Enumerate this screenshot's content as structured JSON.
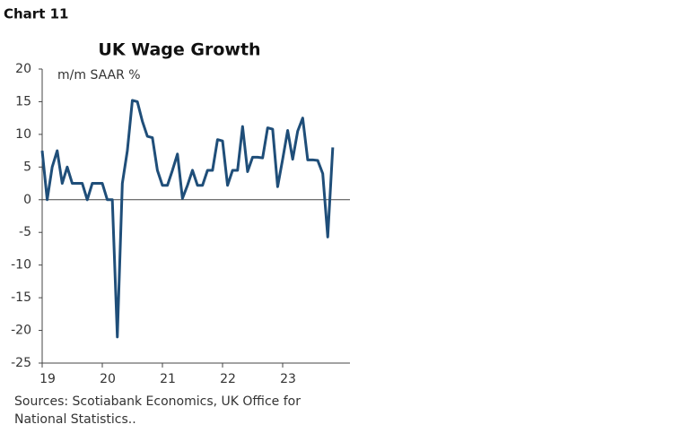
{
  "chart_label": "Chart 11",
  "chart_data": {
    "type": "line",
    "title": "UK Wage Growth",
    "y_axis_label": "m/m SAAR %",
    "categories": [
      "19",
      null,
      null,
      null,
      null,
      null,
      null,
      null,
      null,
      null,
      null,
      null,
      "20",
      null,
      null,
      null,
      null,
      null,
      null,
      null,
      null,
      null,
      null,
      null,
      "21",
      null,
      null,
      null,
      null,
      null,
      null,
      null,
      null,
      null,
      null,
      null,
      "22",
      null,
      null,
      null,
      null,
      null,
      null,
      null,
      null,
      null,
      null,
      null,
      "23",
      null,
      null,
      null,
      null,
      null,
      null,
      null,
      null,
      null,
      null,
      null
    ],
    "series": [
      {
        "name": "UK Wage Growth",
        "color": "#1f4e79",
        "values": [
          7.5,
          0,
          5,
          7.5,
          2.5,
          5,
          2.5,
          2.5,
          2.5,
          0,
          2.5,
          2.5,
          2.5,
          0,
          0,
          -21,
          2.5,
          7.5,
          15.2,
          15,
          12,
          9.7,
          9.5,
          4.5,
          2.2,
          2.2,
          4.5,
          7,
          0.2,
          2.2,
          4.5,
          2.2,
          2.2,
          4.5,
          4.5,
          9.2,
          9,
          2.2,
          4.5,
          4.5,
          11.2,
          4.3,
          6.5,
          6.5,
          6.4,
          11,
          10.8,
          2,
          6.2,
          10.6,
          6.2,
          10.5,
          12.5,
          6.1,
          6.1,
          6,
          4,
          -5.7,
          8,
          null
        ]
      }
    ],
    "ylim": [
      -25,
      20
    ],
    "yticks": [
      -25,
      -20,
      -15,
      -10,
      -5,
      0,
      5,
      10,
      15,
      20
    ],
    "grid": false
  },
  "source": [
    "Sources: Scotiabank Economics, UK Office for",
    "National Statistics.."
  ]
}
